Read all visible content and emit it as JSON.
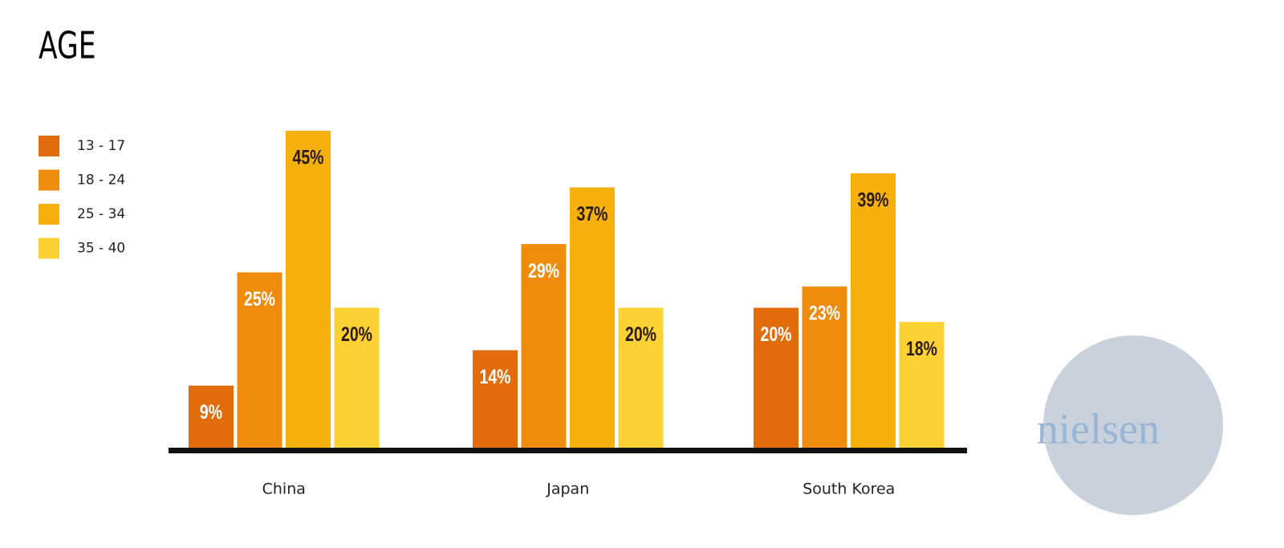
{
  "chart_data": {
    "type": "bar",
    "title": "AGE",
    "categories": [
      "China",
      "Japan",
      "South Korea"
    ],
    "series": [
      {
        "name": "13 - 17",
        "color": "#e36c0a",
        "values": [
          9,
          14,
          20
        ],
        "value_labels": [
          "9%",
          "14%",
          "20%"
        ]
      },
      {
        "name": "18 - 24",
        "color": "#ef8c0e",
        "values": [
          25,
          29,
          23
        ],
        "value_labels": [
          "25%",
          "29%",
          "23%"
        ]
      },
      {
        "name": "25 - 34",
        "color": "#f5b00b",
        "values": [
          45,
          37,
          39
        ],
        "value_labels": [
          "45%",
          "37%",
          "39%"
        ]
      },
      {
        "name": "35 - 40",
        "color": "#fbd134",
        "values": [
          20,
          20,
          18
        ],
        "value_labels": [
          "20%",
          "20%",
          "18%"
        ]
      }
    ],
    "legend": "top-left",
    "watermark": "nielsen"
  }
}
